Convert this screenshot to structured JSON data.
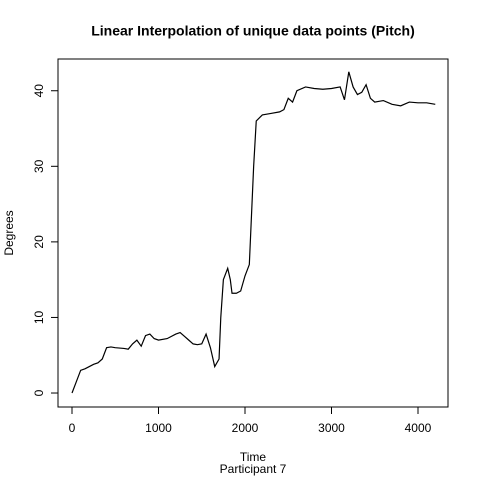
{
  "chart_data": {
    "type": "line",
    "title": "Linear Interpolation of unique data points (Pitch)",
    "x_label": "Time",
    "subtitle": "Participant 7",
    "y_label": "Degrees",
    "x": [
      0,
      50,
      100,
      150,
      200,
      250,
      300,
      350,
      400,
      450,
      500,
      600,
      650,
      700,
      750,
      800,
      850,
      900,
      950,
      1000,
      1100,
      1200,
      1250,
      1300,
      1350,
      1400,
      1450,
      1500,
      1550,
      1600,
      1650,
      1700,
      1720,
      1750,
      1800,
      1830,
      1850,
      1900,
      1950,
      2000,
      2050,
      2100,
      2130,
      2200,
      2300,
      2400,
      2450,
      2500,
      2550,
      2600,
      2700,
      2800,
      2900,
      3000,
      3100,
      3150,
      3200,
      3250,
      3300,
      3350,
      3400,
      3450,
      3500,
      3600,
      3700,
      3800,
      3900,
      4000,
      4100,
      4200
    ],
    "series": [
      {
        "name": "Pitch",
        "color": "#000000",
        "values": [
          0,
          1.5,
          3,
          3.2,
          3.5,
          3.8,
          4,
          4.5,
          6,
          6.1,
          6,
          5.9,
          5.8,
          6.5,
          7,
          6.2,
          7.6,
          7.8,
          7.2,
          7,
          7.2,
          7.8,
          8,
          7.5,
          7,
          6.5,
          6.4,
          6.5,
          7.8,
          6,
          3.5,
          4.5,
          10,
          15,
          16.5,
          15,
          13.2,
          13.2,
          13.5,
          15.5,
          17,
          30,
          36,
          36.8,
          37,
          37.2,
          37.5,
          39,
          38.5,
          40,
          40.5,
          40.3,
          40.2,
          40.3,
          40.5,
          38.8,
          42.5,
          40.5,
          39.5,
          39.8,
          40.8,
          39,
          38.5,
          38.7,
          38.2,
          38,
          38.5,
          38.4,
          38.4,
          38.2
        ]
      }
    ],
    "xlim": [
      -162,
      4347
    ],
    "xticks": [
      0,
      1000,
      2000,
      3000,
      4000
    ],
    "ylim": [
      -1.85,
      44.2
    ],
    "yticks": [
      0,
      10,
      20,
      30,
      40
    ]
  }
}
